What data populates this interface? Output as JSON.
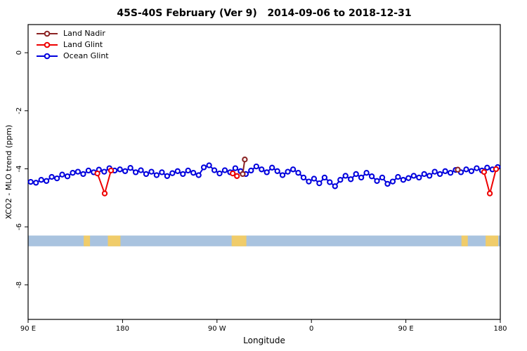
{
  "chart_data": {
    "type": "line",
    "title": "45S-40S February (Ver 9)   2014-09-06 to 2018-12-31",
    "xlabel": "Longitude",
    "ylabel": "XCO2 - MLO trend (ppm)",
    "x_domain_deg": [
      0,
      450
    ],
    "ylim": [
      -9.19,
      0.97
    ],
    "x_ticks": [
      {
        "deg": 0,
        "label": "90 E"
      },
      {
        "deg": 90,
        "label": "180"
      },
      {
        "deg": 180,
        "label": "90 W"
      },
      {
        "deg": 270,
        "label": "0"
      },
      {
        "deg": 360,
        "label": "90 E"
      },
      {
        "deg": 450,
        "label": "180"
      }
    ],
    "y_ticks": [
      {
        "value": 0,
        "label": "0"
      },
      {
        "value": -2,
        "label": "-2"
      },
      {
        "value": -4,
        "label": "-4"
      },
      {
        "value": -6,
        "label": "-6"
      },
      {
        "value": -8,
        "label": "-8"
      }
    ],
    "legend": [
      {
        "label": "Land Nadir",
        "color": "#8B2323"
      },
      {
        "label": "Land Glint",
        "color": "#EE0000"
      },
      {
        "label": "Ocean Glint",
        "color": "#0000DD"
      }
    ],
    "map_strip": {
      "y_top": -6.3,
      "y_bottom": -6.67,
      "ocean_color": "#A9C3DF",
      "land_color": "#F0CC6A",
      "land_patches_deg": [
        [
          53,
          59
        ],
        [
          76,
          88
        ],
        [
          194,
          208
        ],
        [
          413,
          419
        ],
        [
          436,
          448
        ]
      ]
    },
    "series": [
      {
        "name": "Ocean Glint",
        "color": "#0000DD",
        "marker": "open-circle",
        "x_start_deg": 2.5,
        "x_step_deg": 5,
        "values": [
          -4.45,
          -4.48,
          -4.38,
          -4.42,
          -4.28,
          -4.33,
          -4.2,
          -4.26,
          -4.14,
          -4.1,
          -4.18,
          -4.06,
          -4.12,
          -4.03,
          -4.1,
          -3.98,
          -4.06,
          -4.02,
          -4.08,
          -3.97,
          -4.12,
          -4.05,
          -4.18,
          -4.1,
          -4.22,
          -4.12,
          -4.25,
          -4.15,
          -4.08,
          -4.18,
          -4.06,
          -4.14,
          -4.22,
          -3.95,
          -3.88,
          -4.05,
          -4.16,
          -4.05,
          -4.12,
          -3.98,
          -4.08,
          -4.18,
          -4.06,
          -3.92,
          -4.02,
          -4.12,
          -3.96,
          -4.08,
          -4.22,
          -4.1,
          -4.02,
          -4.14,
          -4.3,
          -4.44,
          -4.34,
          -4.5,
          -4.3,
          -4.46,
          -4.6,
          -4.38,
          -4.24,
          -4.36,
          -4.18,
          -4.3,
          -4.14,
          -4.26,
          -4.42,
          -4.3,
          -4.52,
          -4.44,
          -4.28,
          -4.38,
          -4.32,
          -4.24,
          -4.3,
          -4.18,
          -4.24,
          -4.1,
          -4.18,
          -4.08,
          -4.14,
          -4.04,
          -4.12,
          -4.02,
          -4.08,
          -3.98,
          -4.06,
          -3.96,
          -4.02,
          -3.94
        ]
      },
      {
        "name": "Land Glint",
        "color": "#EE0000",
        "marker": "open-circle",
        "segments": [
          [
            [
              66,
              -4.16
            ],
            [
              73,
              -4.85
            ],
            [
              79,
              -4.06
            ]
          ],
          [
            [
              195,
              -4.16
            ],
            [
              199,
              -4.25
            ]
          ],
          [
            [
              434.5,
              -4.11
            ],
            [
              440,
              -4.85
            ],
            [
              446,
              -4.01
            ]
          ]
        ]
      },
      {
        "name": "Land Nadir",
        "color": "#8B2323",
        "marker": "open-circle",
        "segments": [
          [
            [
              204.5,
              -4.18
            ],
            [
              206.5,
              -3.68
            ]
          ],
          [
            [
              409.5,
              -4.03
            ]
          ]
        ]
      }
    ]
  }
}
